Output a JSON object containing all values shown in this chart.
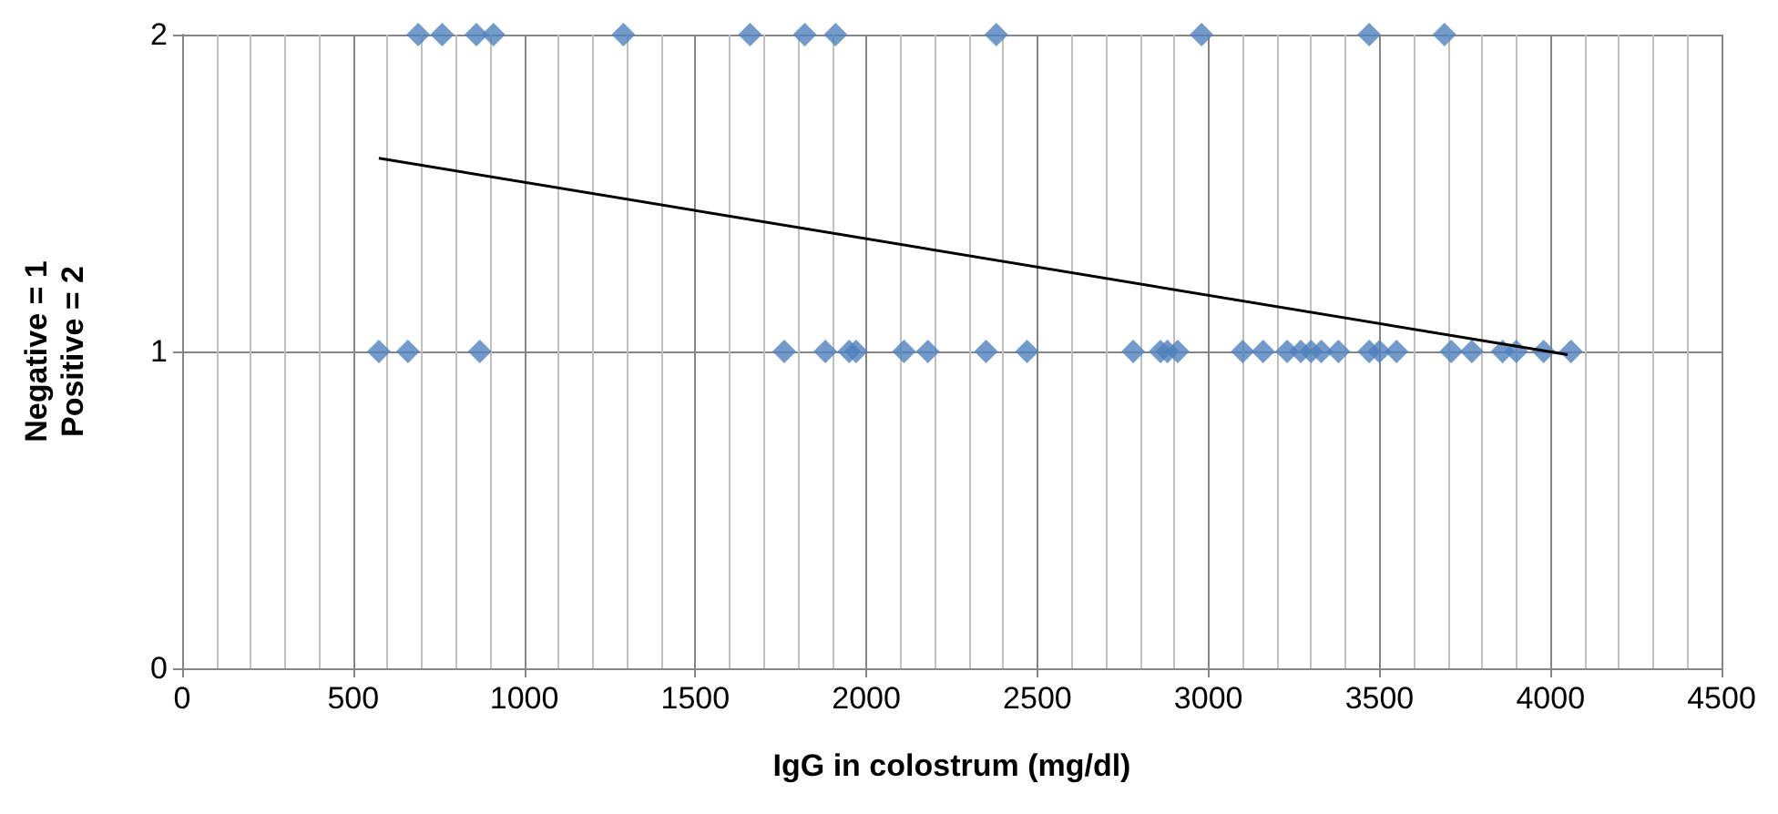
{
  "chart_data": {
    "type": "scatter",
    "xlabel": "IgG in colostrum (mg/dl)",
    "ylabel": "Negative = 1\nPositive = 2",
    "xlim": [
      0,
      4500
    ],
    "xticks": [
      0,
      500,
      1000,
      1500,
      2000,
      2500,
      3000,
      3500,
      4000,
      4500
    ],
    "ylim": [
      0,
      2
    ],
    "yticks": [
      0,
      1,
      2
    ],
    "grid": true,
    "marker": "diamond",
    "series": [
      {
        "color": "#4f81bd",
        "x": [
          690,
          760,
          860,
          910,
          1290,
          1660,
          1820,
          1910,
          2380,
          2980,
          3470,
          3690
        ],
        "values": [
          2,
          2,
          2,
          2,
          2,
          2,
          2,
          2,
          2,
          2,
          2,
          2
        ]
      },
      {
        "color": "#4f81bd",
        "x": [
          575,
          660,
          870,
          1760,
          1880,
          1950,
          1970,
          2110,
          2180,
          2350,
          2470,
          2780,
          2860,
          2880,
          2910,
          3100,
          3160,
          3230,
          3270,
          3300,
          3330,
          3380,
          3470,
          3500,
          3550,
          3710,
          3770,
          3860,
          3900,
          3980,
          4060
        ],
        "values": [
          1,
          1,
          1,
          1,
          1,
          1,
          1,
          1,
          1,
          1,
          1,
          1,
          1,
          1,
          1,
          1,
          1,
          1,
          1,
          1,
          1,
          1,
          1,
          1,
          1,
          1,
          1,
          1,
          1,
          1,
          1
        ]
      },
      {
        "type": "line",
        "color": "#000000",
        "line_style": "solid",
        "marker": "none",
        "x": [
          575,
          4050
        ],
        "values": [
          1.61,
          0.99
        ]
      }
    ]
  }
}
